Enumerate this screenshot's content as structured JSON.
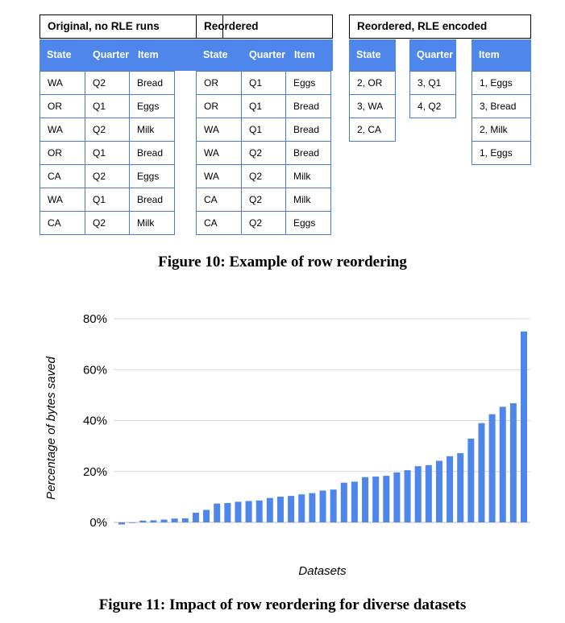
{
  "figure10": {
    "caption": "Figure 10: Example of row reordering",
    "original": {
      "title": "Original, no RLE runs",
      "headers": [
        "State",
        "Quarter",
        "Item"
      ],
      "rows": [
        [
          "WA",
          "Q2",
          "Bread"
        ],
        [
          "OR",
          "Q1",
          "Eggs"
        ],
        [
          "WA",
          "Q2",
          "Milk"
        ],
        [
          "OR",
          "Q1",
          "Bread"
        ],
        [
          "CA",
          "Q2",
          "Eggs"
        ],
        [
          "WA",
          "Q1",
          "Bread"
        ],
        [
          "CA",
          "Q2",
          "Milk"
        ]
      ]
    },
    "reordered": {
      "title": "Reordered",
      "headers": [
        "State",
        "Quarter",
        "Item"
      ],
      "rows": [
        [
          "OR",
          "Q1",
          "Eggs"
        ],
        [
          "OR",
          "Q1",
          "Bread"
        ],
        [
          "WA",
          "Q1",
          "Bread"
        ],
        [
          "WA",
          "Q2",
          "Bread"
        ],
        [
          "WA",
          "Q2",
          "Milk"
        ],
        [
          "CA",
          "Q2",
          "Milk"
        ],
        [
          "CA",
          "Q2",
          "Eggs"
        ]
      ]
    },
    "rle": {
      "title": "Reordered, RLE encoded",
      "headers": [
        "State",
        "Quarter",
        "Item"
      ],
      "columns": [
        [
          "2, OR",
          "3, WA",
          "2, CA"
        ],
        [
          "3, Q1",
          "4, Q2"
        ],
        [
          "1, Eggs",
          "3, Bread",
          "2, Milk",
          "1, Eggs"
        ]
      ]
    }
  },
  "figure11": {
    "caption": "Figure 11: Impact of row reordering for diverse datasets"
  },
  "chart_data": {
    "type": "bar",
    "xlabel": "Datasets",
    "ylabel": "Percentage of bytes saved",
    "ylim": [
      0,
      80
    ],
    "yticks": [
      "0%",
      "20%",
      "40%",
      "60%",
      "80%"
    ],
    "ytick_values": [
      0,
      20,
      40,
      60,
      80
    ],
    "grid": true,
    "bar_color": "#4f86ec",
    "values": [
      -0.8,
      0,
      0.7,
      0.8,
      1.1,
      1.5,
      1.6,
      3.8,
      4.9,
      7.4,
      7.6,
      8.1,
      8.4,
      8.6,
      9.6,
      10.1,
      10.4,
      11.0,
      11.5,
      12.5,
      12.9,
      15.6,
      16.0,
      17.8,
      18.0,
      18.3,
      19.6,
      20.5,
      22.1,
      22.5,
      24.2,
      26.0,
      27.2,
      32.9,
      39.0,
      42.5,
      45.4,
      46.8,
      75.0
    ]
  }
}
